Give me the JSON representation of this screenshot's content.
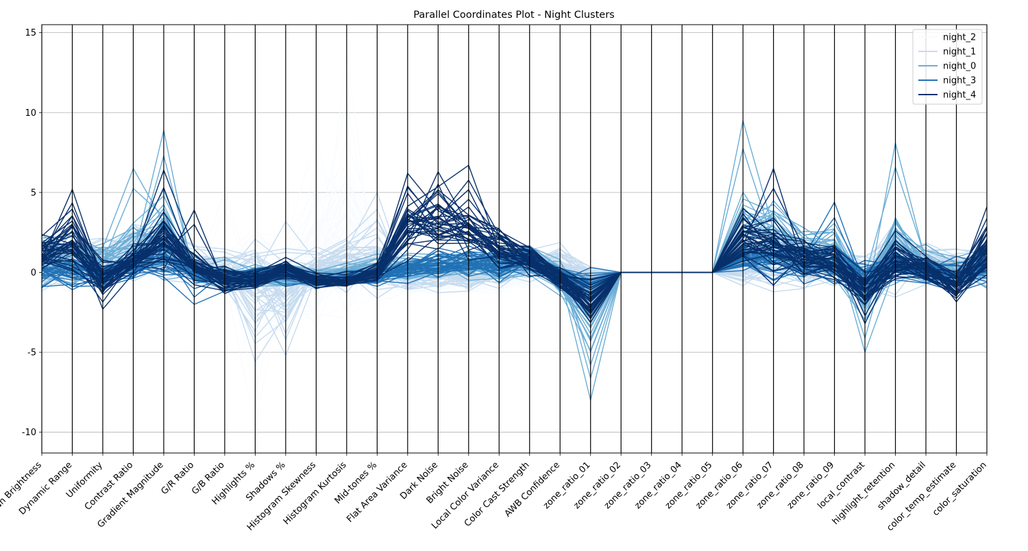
{
  "chart_data": {
    "type": "parallel_coordinates",
    "title": "Parallel Coordinates Plot - Night Clusters",
    "axes": [
      "Mean Brightness",
      "Dynamic Range",
      "Uniformity",
      "Contrast Ratio",
      "Gradient Magnitude",
      "G/R Ratio",
      "G/B Ratio",
      "Highlights %",
      "Shadows %",
      "Histogram Skewness",
      "Histogram Kurtosis",
      "Mid-tones %",
      "Flat Area Variance",
      "Dark Noise",
      "Bright Noise",
      "Local Color Variance",
      "Color Cast Strength",
      "AWB Confidence",
      "zone_ratio_01",
      "zone_ratio_02",
      "zone_ratio_03",
      "zone_ratio_04",
      "zone_ratio_05",
      "zone_ratio_06",
      "zone_ratio_07",
      "zone_ratio_08",
      "zone_ratio_09",
      "local_contrast",
      "highlight_retention",
      "shadow_detail",
      "color_temp_estimate",
      "color_saturation"
    ],
    "yticks": [
      -10,
      -5,
      0,
      5,
      10,
      15
    ],
    "ylim": [
      -11.3,
      15.5
    ],
    "grid": "horizontal",
    "legend_position": "top-right",
    "series": [
      {
        "name": "night_2",
        "color": "#f7fbff",
        "center": [
          0.2,
          -0.3,
          0.5,
          0.8,
          0.6,
          0.3,
          0.1,
          -0.8,
          -0.5,
          1.0,
          1.5,
          0.5,
          -0.5,
          -0.4,
          -0.3,
          -0.3,
          -0.2,
          0.2,
          -0.3,
          0,
          0,
          0,
          0,
          -0.2,
          0.1,
          0,
          0.1,
          0.2,
          0.3,
          0.2,
          0.1,
          0.4
        ],
        "spread": [
          1.2,
          1.1,
          1.3,
          1.2,
          1.2,
          1.2,
          1.5,
          3.0,
          2.2,
          3.5,
          4.5,
          2.0,
          0.8,
          0.8,
          0.8,
          0.8,
          0.8,
          1.0,
          0.7,
          0,
          0,
          0,
          0,
          0.6,
          0.6,
          0.6,
          0.6,
          0.8,
          1.0,
          1.0,
          1.2,
          1.2
        ],
        "extremes": [
          {
            "axis": 10,
            "value": 13.8
          },
          {
            "axis": 9,
            "value": 8.5
          },
          {
            "axis": 7,
            "value": -9.8
          },
          {
            "axis": 6,
            "value": 5.2
          }
        ]
      },
      {
        "name": "night_1",
        "color": "#c6dbef",
        "center": [
          0.5,
          0.3,
          0.8,
          1.5,
          1.2,
          0.5,
          0.2,
          -1.0,
          -1.2,
          0.3,
          0.5,
          0.8,
          -0.3,
          -0.2,
          -0.2,
          0.2,
          0.3,
          0.5,
          -0.5,
          0,
          0,
          0,
          0,
          0.3,
          0.5,
          0.3,
          0.4,
          -0.2,
          0.8,
          0.4,
          0.2,
          0.5
        ],
        "spread": [
          1.3,
          1.3,
          1.2,
          1.5,
          1.5,
          1.0,
          1.0,
          2.5,
          2.5,
          1.0,
          1.5,
          2.0,
          0.8,
          0.9,
          0.9,
          1.0,
          1.0,
          1.0,
          0.8,
          0,
          0,
          0,
          0,
          1.2,
          1.2,
          1.0,
          1.0,
          0.9,
          1.5,
          1.2,
          1.0,
          1.0
        ],
        "extremes": [
          {
            "axis": 8,
            "value": -5.2
          },
          {
            "axis": 11,
            "value": 5.0
          },
          {
            "axis": 7,
            "value": -5.6
          }
        ]
      },
      {
        "name": "night_0",
        "color": "#6baed6",
        "center": [
          1.0,
          1.0,
          0.5,
          1.5,
          2.5,
          0.2,
          -0.2,
          -0.3,
          -0.2,
          -0.3,
          -0.1,
          0.3,
          0.2,
          0.3,
          0.4,
          0.5,
          0.8,
          -0.3,
          -2.5,
          0,
          0,
          0,
          0,
          2.5,
          2.5,
          1.5,
          1.0,
          -1.5,
          2.0,
          0.5,
          0.0,
          0.5
        ],
        "spread": [
          1.2,
          1.3,
          1.0,
          1.8,
          2.0,
          0.8,
          0.8,
          0.6,
          0.6,
          0.5,
          0.5,
          0.6,
          0.7,
          0.7,
          0.7,
          0.9,
          0.9,
          0.8,
          2.0,
          0,
          0,
          0,
          0,
          2.0,
          1.8,
          1.5,
          1.5,
          1.6,
          2.0,
          0.9,
          0.9,
          1.0
        ],
        "extremes": [
          {
            "axis": 4,
            "value": 8.9
          },
          {
            "axis": 18,
            "value": -8.0
          },
          {
            "axis": 23,
            "value": 9.5
          },
          {
            "axis": 28,
            "value": 8.1
          },
          {
            "axis": 3,
            "value": 6.5
          },
          {
            "axis": 27,
            "value": -5.0
          },
          {
            "axis": 18,
            "value": -5.8
          }
        ]
      },
      {
        "name": "night_3",
        "color": "#2171b5",
        "center": [
          0.3,
          0.2,
          -0.2,
          0.3,
          1.0,
          -0.2,
          -0.4,
          -0.3,
          0.0,
          -0.5,
          -0.4,
          -0.3,
          0.3,
          0.5,
          0.6,
          0.5,
          0.8,
          -0.3,
          -0.8,
          0,
          0,
          0,
          0,
          0.8,
          0.8,
          0.5,
          0.5,
          -0.5,
          0.5,
          0.0,
          -0.2,
          0.5
        ],
        "spread": [
          1.0,
          1.0,
          0.8,
          0.9,
          1.2,
          0.6,
          0.6,
          0.6,
          0.6,
          0.4,
          0.4,
          0.5,
          0.7,
          0.8,
          0.8,
          0.8,
          0.8,
          0.6,
          0.9,
          0,
          0,
          0,
          0,
          1.0,
          1.0,
          1.0,
          1.2,
          0.9,
          0.9,
          0.7,
          0.8,
          1.0
        ],
        "extremes": [
          {
            "axis": 5,
            "value": -2.0
          },
          {
            "axis": 26,
            "value": 4.4
          },
          {
            "axis": 4,
            "value": 3.8
          }
        ]
      },
      {
        "name": "night_4",
        "color": "#08306b",
        "center": [
          1.2,
          1.8,
          -0.5,
          0.8,
          2.0,
          0.3,
          -0.5,
          -0.5,
          0.2,
          -0.5,
          -0.5,
          0.0,
          3.0,
          3.2,
          3.0,
          1.5,
          0.8,
          -0.3,
          -1.8,
          0,
          0,
          0,
          0,
          2.0,
          1.5,
          0.8,
          0.5,
          -1.2,
          0.8,
          0.2,
          -0.8,
          1.2
        ],
        "spread": [
          1.0,
          1.5,
          0.9,
          1.0,
          1.5,
          0.8,
          0.7,
          0.5,
          0.5,
          0.4,
          0.4,
          0.5,
          1.5,
          1.6,
          1.5,
          1.2,
          0.8,
          0.6,
          1.2,
          0,
          0,
          0,
          0,
          1.5,
          1.5,
          1.0,
          1.0,
          1.0,
          1.2,
          0.6,
          0.8,
          1.5
        ],
        "extremes": [
          {
            "axis": 1,
            "value": 5.2
          },
          {
            "axis": 2,
            "value": -2.3
          },
          {
            "axis": 4,
            "value": 6.4
          },
          {
            "axis": 5,
            "value": 3.9
          },
          {
            "axis": 13,
            "value": 6.3
          },
          {
            "axis": 14,
            "value": 6.7
          },
          {
            "axis": 12,
            "value": 6.2
          },
          {
            "axis": 24,
            "value": 6.5
          },
          {
            "axis": 31,
            "value": 4.1
          },
          {
            "axis": 27,
            "value": -3.2
          }
        ]
      }
    ]
  }
}
